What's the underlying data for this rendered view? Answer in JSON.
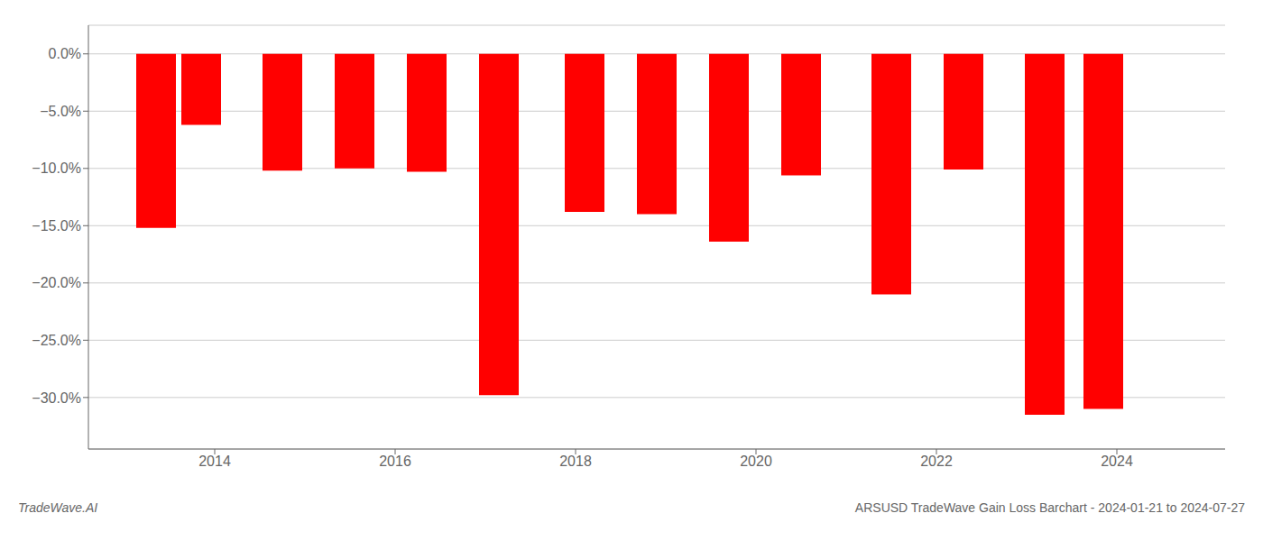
{
  "chart_data": {
    "type": "bar",
    "title": "ARSUSD TradeWave Gain Loss Barchart - 2024-01-21 to 2024-07-27",
    "annotations": [
      "TradeWave.AI"
    ],
    "x": [
      2013.35,
      2013.85,
      2014.75,
      2015.55,
      2016.35,
      2017.15,
      2018.1,
      2018.9,
      2019.7,
      2020.5,
      2021.5,
      2022.3,
      2023.2,
      2023.85
    ],
    "values": [
      -15.2,
      -6.2,
      -10.2,
      -10.0,
      -10.3,
      -29.8,
      -13.8,
      -14.0,
      -16.4,
      -10.6,
      -21.0,
      -10.1,
      -31.5,
      -31.0
    ],
    "color": "#ff0000",
    "xlim": [
      2012.6,
      2025.2
    ],
    "xticks": [
      2014,
      2016,
      2018,
      2020,
      2022,
      2024
    ],
    "ylim": [
      -34.5,
      2.5
    ],
    "yticks": [
      {
        "value": 0.0,
        "label": "0.0%"
      },
      {
        "value": -5.0,
        "label": "−5.0%"
      },
      {
        "value": -10.0,
        "label": "−10.0%"
      },
      {
        "value": -15.0,
        "label": "−15.0%"
      },
      {
        "value": -20.0,
        "label": "−20.0%"
      },
      {
        "value": -25.0,
        "label": "−25.0%"
      },
      {
        "value": -30.0,
        "label": "−30.0%"
      }
    ],
    "grid": true
  }
}
